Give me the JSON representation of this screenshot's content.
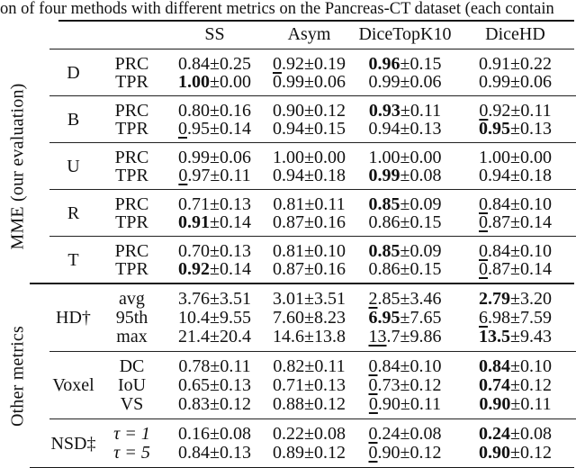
{
  "caption": "on of four methods with different metrics on the Pancreas-CT dataset (each contain",
  "columns": [
    "SS",
    "Asym",
    "DiceTopK10",
    "DiceHD"
  ],
  "colors": {
    "background": "#ffffff",
    "text": "#111111",
    "rule": "#161616"
  },
  "sections": [
    {
      "id": "mme",
      "label": "MME (our evaluation)",
      "groups": [
        {
          "name": "D",
          "rows": [
            {
              "sub": "PRC",
              "cells": [
                {
                  "m": "0.84",
                  "e": "±0.25"
                },
                {
                  "u": "0",
                  "m": ".92",
                  "e": "±0.19"
                },
                {
                  "m": "0.96",
                  "e": "±0.15",
                  "b": "b"
                },
                {
                  "m": "0.91",
                  "e": "±0.22"
                }
              ]
            },
            {
              "sub": "TPR",
              "cells": [
                {
                  "m": "1.00",
                  "e": "±0.00",
                  "b": "b"
                },
                {
                  "m": "0.99",
                  "e": "±0.06"
                },
                {
                  "m": "0.99",
                  "e": "±0.06"
                },
                {
                  "m": "0.99",
                  "e": "±0.06"
                }
              ]
            }
          ]
        },
        {
          "name": "B",
          "rows": [
            {
              "sub": "PRC",
              "cells": [
                {
                  "m": "0.80",
                  "e": "±0.16"
                },
                {
                  "m": "0.90",
                  "e": "±0.12"
                },
                {
                  "m": "0.93",
                  "e": "±0.11",
                  "b": "b"
                },
                {
                  "u": "0",
                  "m": ".92",
                  "e": "±0.11"
                }
              ]
            },
            {
              "sub": "TPR",
              "cells": [
                {
                  "u": "0",
                  "m": ".95",
                  "e": "±0.14"
                },
                {
                  "m": "0.94",
                  "e": "±0.15"
                },
                {
                  "m": "0.94",
                  "e": "±0.13"
                },
                {
                  "m": "0.95",
                  "e": "±0.13",
                  "b": "b"
                }
              ]
            }
          ]
        },
        {
          "name": "U",
          "rows": [
            {
              "sub": "PRC",
              "cells": [
                {
                  "m": "0.99",
                  "e": "±0.06"
                },
                {
                  "m": "1.00",
                  "e": "±0.00"
                },
                {
                  "m": "1.00",
                  "e": "±0.00"
                },
                {
                  "m": "1.00",
                  "e": "±0.00"
                }
              ]
            },
            {
              "sub": "TPR",
              "cells": [
                {
                  "u": "0",
                  "m": ".97",
                  "e": "±0.11"
                },
                {
                  "m": "0.94",
                  "e": "±0.18"
                },
                {
                  "m": "0.99",
                  "e": "±0.08",
                  "b": "b"
                },
                {
                  "m": "0.94",
                  "e": "±0.18"
                }
              ]
            }
          ]
        },
        {
          "name": "R",
          "rows": [
            {
              "sub": "PRC",
              "cells": [
                {
                  "m": "0.71",
                  "e": "±0.13"
                },
                {
                  "m": "0.81",
                  "e": "±0.11"
                },
                {
                  "m": "0.85",
                  "e": "±0.09",
                  "b": "b"
                },
                {
                  "u": "0",
                  "m": ".84",
                  "e": "±0.10"
                }
              ]
            },
            {
              "sub": "TPR",
              "cells": [
                {
                  "m": "0.91",
                  "e": "±0.14",
                  "b": "b"
                },
                {
                  "m": "0.87",
                  "e": "±0.16"
                },
                {
                  "m": "0.86",
                  "e": "±0.15"
                },
                {
                  "u": "0",
                  "m": ".87",
                  "e": "±0.14"
                }
              ]
            }
          ]
        },
        {
          "name": "T",
          "rows": [
            {
              "sub": "PRC",
              "cells": [
                {
                  "m": "0.70",
                  "e": "±0.13"
                },
                {
                  "m": "0.81",
                  "e": "±0.10"
                },
                {
                  "m": "0.85",
                  "e": "±0.09",
                  "b": "b"
                },
                {
                  "u": "0",
                  "m": ".84",
                  "e": "±0.10"
                }
              ]
            },
            {
              "sub": "TPR",
              "cells": [
                {
                  "m": "0.92",
                  "e": "±0.14",
                  "b": "b"
                },
                {
                  "m": "0.87",
                  "e": "±0.16"
                },
                {
                  "m": "0.86",
                  "e": "±0.15"
                },
                {
                  "u": "0",
                  "m": ".87",
                  "e": "±0.14"
                }
              ]
            }
          ]
        }
      ]
    },
    {
      "id": "other",
      "label": "Other metrics",
      "groups": [
        {
          "name": "HD†",
          "rows": [
            {
              "sub": "avg",
              "cells": [
                {
                  "m": "3.76",
                  "e": "±3.51"
                },
                {
                  "m": "3.01",
                  "e": "±3.51"
                },
                {
                  "u": "2",
                  "m": ".85",
                  "e": "±3.46"
                },
                {
                  "m": "2.79",
                  "e": "±3.20",
                  "b": "b"
                }
              ]
            },
            {
              "sub": "95th",
              "cells": [
                {
                  "m": "10.4",
                  "e": "±9.55"
                },
                {
                  "m": "7.60",
                  "e": "±8.23"
                },
                {
                  "m": "6.95",
                  "e": "±7.65",
                  "b": "b"
                },
                {
                  "u": "6",
                  "m": ".98",
                  "e": "±7.59"
                }
              ]
            },
            {
              "sub": "max",
              "cells": [
                {
                  "m": "21.4",
                  "e": "±20.4"
                },
                {
                  "m": "14.6",
                  "e": "±13.8"
                },
                {
                  "u": "13",
                  "m": ".7",
                  "e": "±9.86"
                },
                {
                  "m": "13.5",
                  "e": "±9.43",
                  "b": "b"
                }
              ]
            }
          ]
        },
        {
          "name": "Voxel",
          "rows": [
            {
              "sub": "DC",
              "cells": [
                {
                  "m": "0.78",
                  "e": "±0.11"
                },
                {
                  "m": "0.82",
                  "e": "±0.11"
                },
                {
                  "u": "0",
                  "m": ".84",
                  "e": "±0.10"
                },
                {
                  "m": "0.84",
                  "e": "±0.10",
                  "b": "b"
                }
              ]
            },
            {
              "sub": "IoU",
              "cells": [
                {
                  "m": "0.65",
                  "e": "±0.13"
                },
                {
                  "m": "0.71",
                  "e": "±0.13"
                },
                {
                  "u": "0",
                  "m": ".73",
                  "e": "±0.12"
                },
                {
                  "m": "0.74",
                  "e": "±0.12",
                  "b": "b"
                }
              ]
            },
            {
              "sub": "VS",
              "cells": [
                {
                  "m": "0.83",
                  "e": "±0.12"
                },
                {
                  "m": "0.88",
                  "e": "±0.12"
                },
                {
                  "u": "0",
                  "m": ".90",
                  "e": "±0.11"
                },
                {
                  "m": "0.90",
                  "e": "±0.11",
                  "b": "b"
                }
              ]
            }
          ]
        },
        {
          "name": "NSD‡",
          "rows": [
            {
              "sub": "τ = 1",
              "st": "i",
              "cells": [
                {
                  "m": "0.16",
                  "e": "±0.08"
                },
                {
                  "m": "0.22",
                  "e": "±0.08"
                },
                {
                  "u": "0",
                  "m": ".24",
                  "e": "±0.08"
                },
                {
                  "m": "0.24",
                  "e": "±0.08",
                  "b": "b"
                }
              ]
            },
            {
              "sub": "τ = 5",
              "st": "i",
              "cells": [
                {
                  "m": "0.84",
                  "e": "±0.13"
                },
                {
                  "m": "0.89",
                  "e": "±0.12"
                },
                {
                  "u": "0",
                  "m": ".90",
                  "e": "±0.12"
                },
                {
                  "m": "0.90",
                  "e": "±0.12",
                  "b": "b"
                }
              ]
            }
          ]
        }
      ]
    }
  ]
}
